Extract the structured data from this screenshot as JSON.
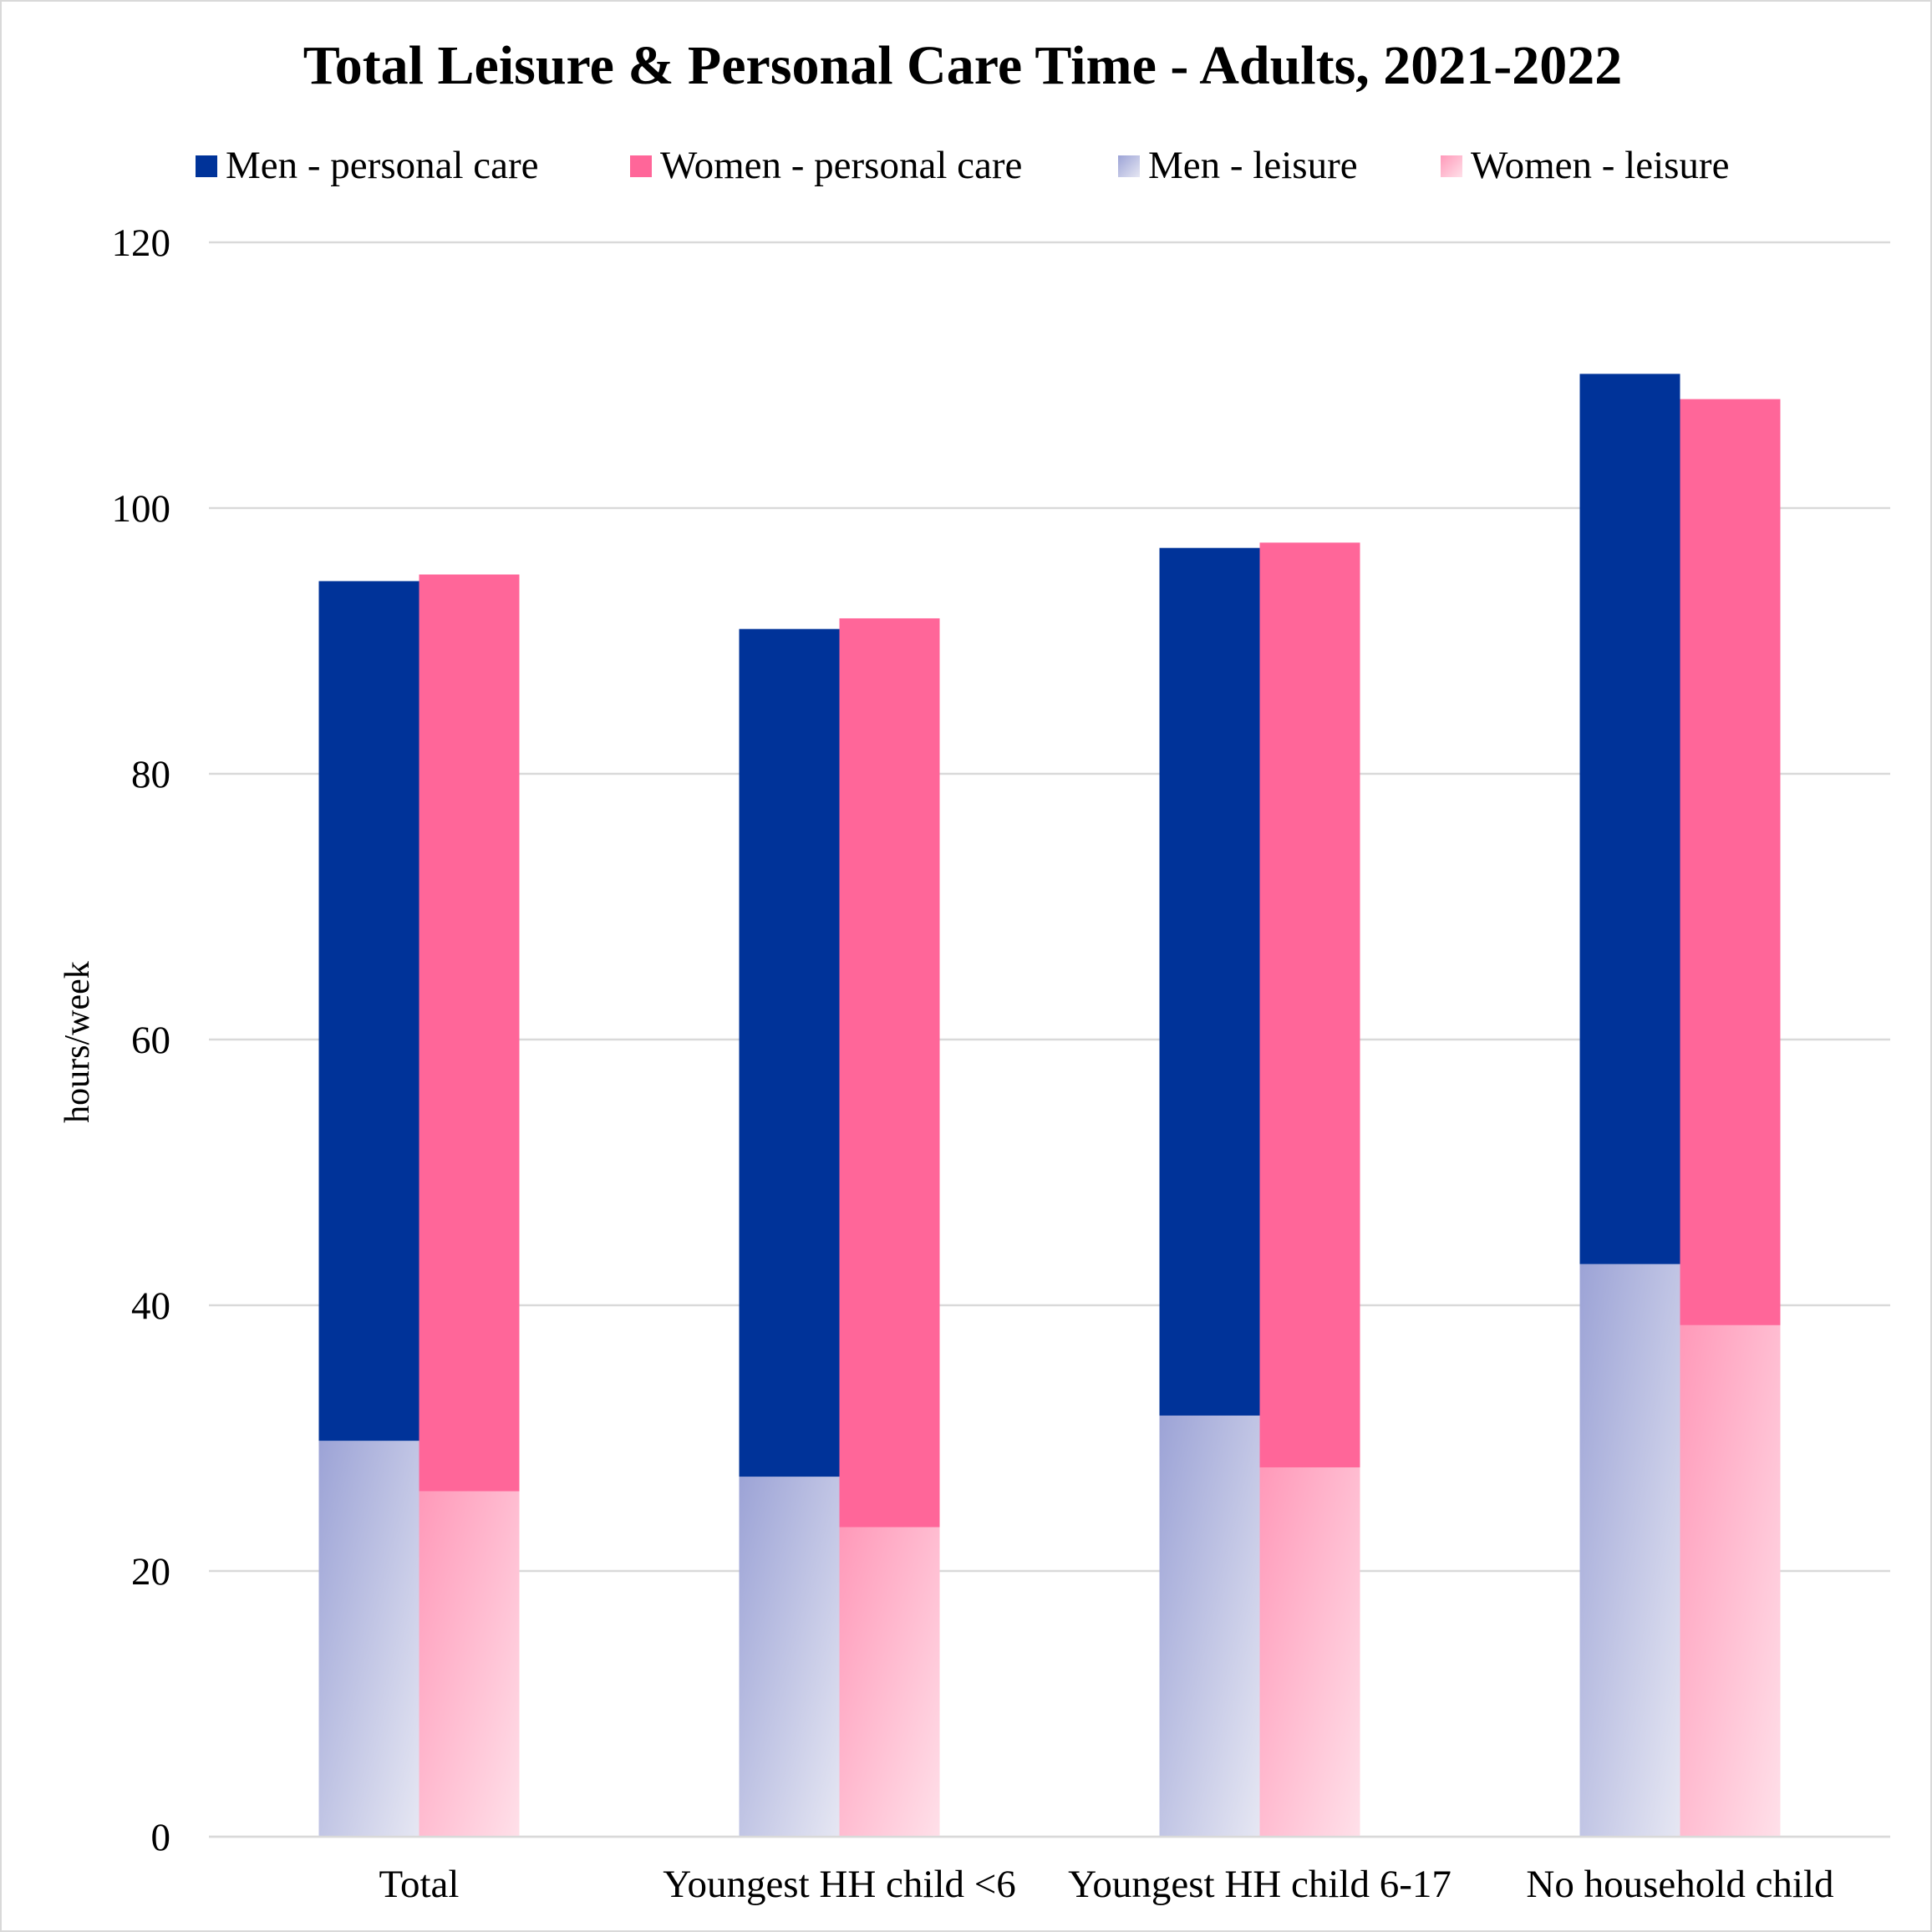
{
  "chart_data": {
    "type": "bar",
    "stacked": true,
    "title": "Total Leisure & Personal Care Time - Adults, 2021-2022",
    "xlabel": "",
    "ylabel": "hours/week",
    "ylim": [
      0,
      120
    ],
    "yticks": [
      0,
      20,
      40,
      60,
      80,
      100,
      120
    ],
    "ytick_labels": [
      "0",
      "20",
      "40",
      "60",
      "80",
      "100",
      "120"
    ],
    "grid": true,
    "legend_position": "top",
    "categories": [
      "Total",
      "Youngest HH child <6",
      "Youngest HH child 6-17",
      "No household child"
    ],
    "legend_order": [
      "Men - personal care",
      "Women - personal care",
      "Men - leisure",
      "Women - leisure"
    ],
    "groups": [
      {
        "name": "Men",
        "series": [
          {
            "name": "Men - leisure",
            "values": [
              29.8,
              27.1,
              31.7,
              43.1
            ],
            "color": "#9ca3d6",
            "color_light": "#e6e7f3"
          },
          {
            "name": "Men - personal care",
            "values": [
              64.7,
              63.8,
              65.3,
              67.0
            ],
            "color": "#003399"
          }
        ]
      },
      {
        "name": "Women",
        "series": [
          {
            "name": "Women - leisure",
            "values": [
              26.0,
              23.3,
              27.8,
              38.5
            ],
            "color": "#ff99b9",
            "color_light": "#ffe0e9"
          },
          {
            "name": "Women - personal care",
            "values": [
              69.0,
              68.4,
              69.6,
              69.7
            ],
            "color": "#ff6699"
          }
        ]
      }
    ]
  }
}
